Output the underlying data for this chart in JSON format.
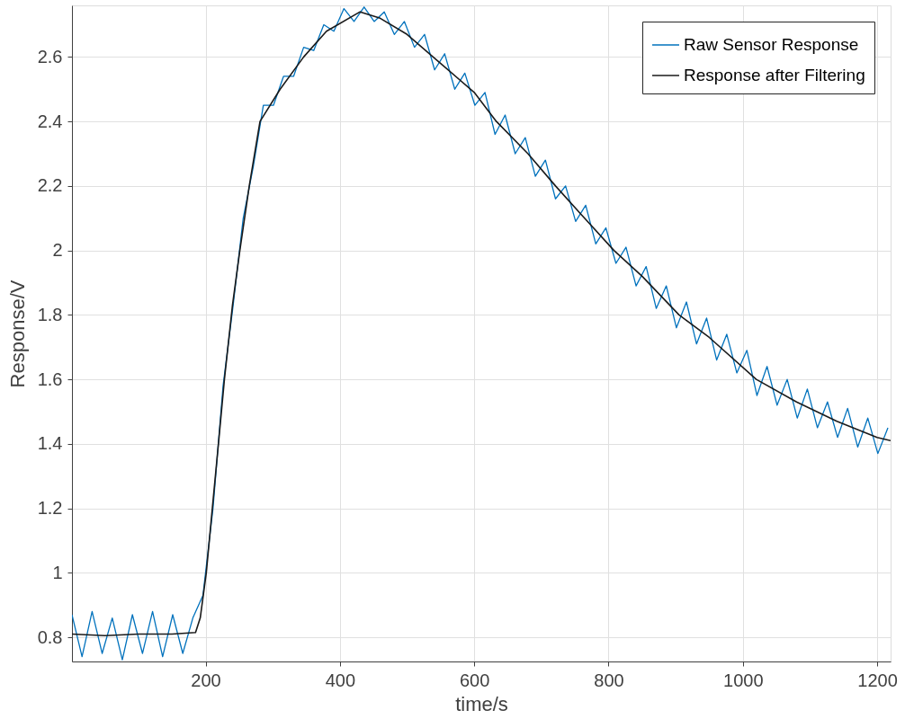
{
  "chart_data": {
    "type": "line",
    "xlabel": "time/s",
    "ylabel": "Response/V",
    "xlim": [
      1,
      1220
    ],
    "ylim": [
      0.725,
      2.76
    ],
    "xticks": [
      200,
      400,
      600,
      800,
      1000,
      1200
    ],
    "yticks": [
      0.8,
      1,
      1.2,
      1.4,
      1.6,
      1.8,
      2,
      2.2,
      2.4,
      2.6
    ],
    "grid": true,
    "legend": "top right",
    "line_style": "solid",
    "marker": "none",
    "series": [
      {
        "name": "Raw Sensor Response",
        "color": "#0072bd",
        "x": [
          1,
          16,
          31,
          46,
          61,
          76,
          91,
          106,
          121,
          136,
          151,
          166,
          181,
          196,
          211,
          226,
          241,
          256,
          271,
          286,
          301,
          316,
          331,
          346,
          361,
          376,
          391,
          406,
          421,
          436,
          451,
          466,
          481,
          496,
          511,
          526,
          541,
          556,
          571,
          586,
          601,
          616,
          631,
          646,
          661,
          676,
          691,
          706,
          721,
          736,
          751,
          766,
          781,
          796,
          811,
          826,
          841,
          856,
          871,
          886,
          901,
          916,
          931,
          946,
          961,
          976,
          991,
          1006,
          1021,
          1036,
          1051,
          1066,
          1081,
          1096,
          1111,
          1126,
          1141,
          1156,
          1171,
          1186,
          1201,
          1216
        ],
        "values": [
          0.87,
          0.74,
          0.88,
          0.75,
          0.86,
          0.73,
          0.87,
          0.75,
          0.88,
          0.74,
          0.87,
          0.75,
          0.86,
          0.93,
          1.2,
          1.58,
          1.83,
          2.1,
          2.26,
          2.45,
          2.45,
          2.54,
          2.54,
          2.63,
          2.62,
          2.7,
          2.68,
          2.75,
          2.71,
          2.755,
          2.71,
          2.74,
          2.67,
          2.71,
          2.63,
          2.67,
          2.56,
          2.61,
          2.5,
          2.55,
          2.45,
          2.49,
          2.36,
          2.42,
          2.3,
          2.35,
          2.23,
          2.28,
          2.16,
          2.2,
          2.09,
          2.14,
          2.02,
          2.07,
          1.96,
          2.01,
          1.89,
          1.95,
          1.82,
          1.89,
          1.76,
          1.84,
          1.71,
          1.79,
          1.66,
          1.74,
          1.62,
          1.69,
          1.55,
          1.64,
          1.52,
          1.6,
          1.48,
          1.57,
          1.45,
          1.53,
          1.42,
          1.51,
          1.39,
          1.48,
          1.37,
          1.45
        ]
      },
      {
        "name": "Response after Filtering",
        "color": "#1a1a1a",
        "x": [
          1,
          50,
          100,
          150,
          185,
          192,
          201,
          210,
          220,
          228,
          240,
          251,
          265,
          281,
          311,
          346,
          380,
          430,
          460,
          500,
          550,
          600,
          633,
          680,
          721,
          760,
          808,
          850,
          905,
          950,
          1020,
          1080,
          1140,
          1200,
          1220
        ],
        "values": [
          0.81,
          0.805,
          0.81,
          0.81,
          0.815,
          0.86,
          1.0,
          1.2,
          1.42,
          1.6,
          1.83,
          2.0,
          2.2,
          2.4,
          2.5,
          2.6,
          2.68,
          2.74,
          2.72,
          2.67,
          2.58,
          2.49,
          2.4,
          2.3,
          2.2,
          2.11,
          2.0,
          1.92,
          1.8,
          1.73,
          1.6,
          1.53,
          1.47,
          1.42,
          1.41
        ]
      }
    ]
  }
}
